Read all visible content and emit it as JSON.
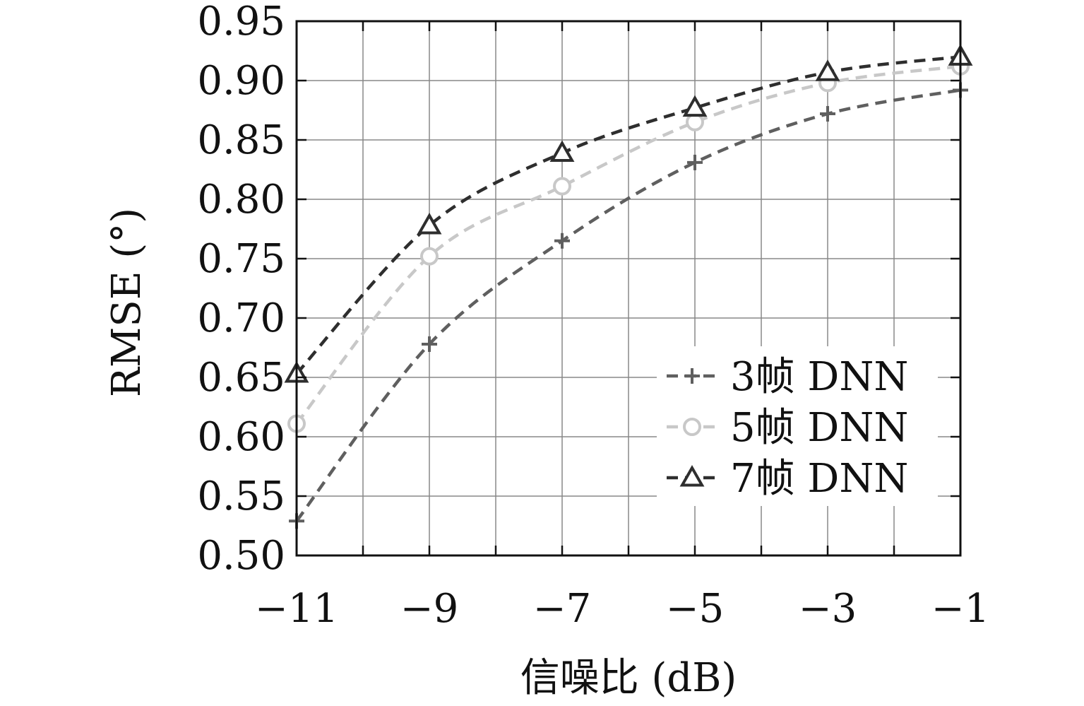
{
  "chart_data": {
    "type": "line",
    "title": "",
    "xlabel": "信噪比 (dB)",
    "ylabel": "RMSE (°)",
    "x": [
      -11,
      -9,
      -7,
      -5,
      -3,
      -1
    ],
    "xticks": [
      -11,
      -9,
      -7,
      -5,
      -3,
      -1
    ],
    "xtick_labels": [
      "−11",
      "−9",
      "−7",
      "−5",
      "−3",
      "−1"
    ],
    "yticks": [
      0.5,
      0.55,
      0.6,
      0.65,
      0.7,
      0.75,
      0.8,
      0.85,
      0.9,
      0.95
    ],
    "ytick_labels": [
      "0.50",
      "0.55",
      "0.60",
      "0.65",
      "0.70",
      "0.75",
      "0.80",
      "0.85",
      "0.90",
      "0.95"
    ],
    "xlim": [
      -11,
      -1
    ],
    "ylim": [
      0.5,
      0.95
    ],
    "grid": true,
    "legend_position": "bottom-right",
    "series": [
      {
        "name": "3帧 DNN",
        "values": [
          0.529,
          0.678,
          0.765,
          0.831,
          0.872,
          0.892
        ],
        "marker": "plus",
        "color": "#5f5f5f"
      },
      {
        "name": "5帧 DNN",
        "values": [
          0.611,
          0.752,
          0.811,
          0.865,
          0.898,
          0.912
        ],
        "marker": "circle",
        "color": "#c8c8c8"
      },
      {
        "name": "7帧 DNN",
        "values": [
          0.653,
          0.778,
          0.839,
          0.877,
          0.907,
          0.92
        ],
        "marker": "triangle",
        "color": "#2e2e2e"
      }
    ]
  }
}
